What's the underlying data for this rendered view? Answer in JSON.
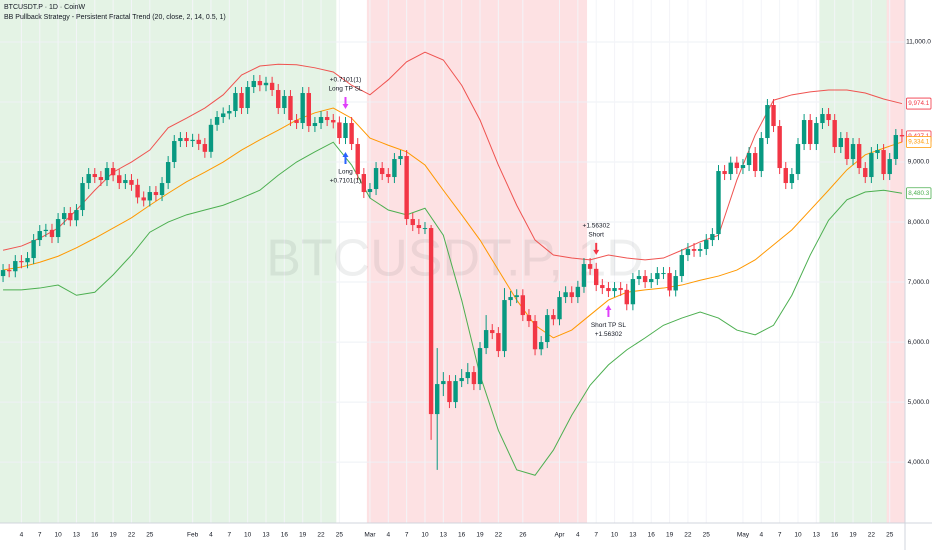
{
  "chart_data": {
    "type": "candlestick",
    "title": "BTCUSDT.P · 1D · CoinW",
    "subtitle": "BB Pullback Strategy - Persistent Fractal Trend (20, close, 2, 14, 0.5, 1)",
    "watermark": "BTCUSDT.P, 1D",
    "up_color": "#089981",
    "down_color": "#f23645",
    "grid": true,
    "x": [
      "Jan 1",
      "Jan 2",
      "Jan 3",
      "Jan 4",
      "Jan 5",
      "Jan 6",
      "Jan 7",
      "Jan 8",
      "Jan 9",
      "Jan 10",
      "Jan 11",
      "Jan 12",
      "Jan 13",
      "Jan 14",
      "Jan 15",
      "Jan 16",
      "Jan 17",
      "Jan 18",
      "Jan 19",
      "Jan 20",
      "Jan 21",
      "Jan 22",
      "Jan 23",
      "Jan 24",
      "Jan 25",
      "Jan 26",
      "Jan 27",
      "Jan 28",
      "Jan 29",
      "Jan 30",
      "Jan 31",
      "Feb 1",
      "Feb 2",
      "Feb 3",
      "Feb 4",
      "Feb 5",
      "Feb 6",
      "Feb 7",
      "Feb 8",
      "Feb 9",
      "Feb 10",
      "Feb 11",
      "Feb 12",
      "Feb 13",
      "Feb 14",
      "Feb 15",
      "Feb 16",
      "Feb 17",
      "Feb 18",
      "Feb 19",
      "Feb 20",
      "Feb 21",
      "Feb 22",
      "Feb 23",
      "Feb 24",
      "Feb 25",
      "Feb 26",
      "Feb 27",
      "Feb 28",
      "Feb 29",
      "Mar 1",
      "Mar 2",
      "Mar 3",
      "Mar 4",
      "Mar 5",
      "Mar 6",
      "Mar 7",
      "Mar 8",
      "Mar 9",
      "Mar 10",
      "Mar 11",
      "Mar 12",
      "Mar 13",
      "Mar 14",
      "Mar 15",
      "Mar 16",
      "Mar 17",
      "Mar 18",
      "Mar 19",
      "Mar 20",
      "Mar 21",
      "Mar 22",
      "Mar 23",
      "Mar 24",
      "Mar 25",
      "Mar 26",
      "Mar 27",
      "Mar 28",
      "Mar 29",
      "Mar 30",
      "Mar 31",
      "Apr 1",
      "Apr 2",
      "Apr 3",
      "Apr 4",
      "Apr 5",
      "Apr 6",
      "Apr 7",
      "Apr 8",
      "Apr 9",
      "Apr 10",
      "Apr 11",
      "Apr 12",
      "Apr 13",
      "Apr 14",
      "Apr 15",
      "Apr 16",
      "Apr 17",
      "Apr 18",
      "Apr 19",
      "Apr 20",
      "Apr 21",
      "Apr 22",
      "Apr 23",
      "Apr 24",
      "Apr 25",
      "Apr 26",
      "Apr 27",
      "Apr 28",
      "Apr 29",
      "Apr 30",
      "May 1",
      "May 2",
      "May 3",
      "May 4",
      "May 5",
      "May 6",
      "May 7",
      "May 8",
      "May 9",
      "May 10",
      "May 11",
      "May 12",
      "May 13",
      "May 14",
      "May 15",
      "May 16",
      "May 17",
      "May 18",
      "May 19",
      "May 20",
      "May 21",
      "May 22",
      "May 23",
      "May 24",
      "May 25",
      "May 26",
      "May 27"
    ],
    "open": [
      7100,
      7200,
      7180,
      7350,
      7330,
      7400,
      7700,
      7850,
      7870,
      7750,
      8050,
      8150,
      8030,
      8200,
      8650,
      8800,
      8750,
      8700,
      8900,
      8780,
      8650,
      8700,
      8620,
      8410,
      8360,
      8500,
      8450,
      8650,
      9000,
      9350,
      9400,
      9350,
      9370,
      9300,
      9170,
      9620,
      9750,
      9810,
      9850,
      10150,
      9900,
      10250,
      10350,
      10280,
      10320,
      10200,
      9900,
      10100,
      9700,
      9650,
      10150,
      9600,
      9650,
      9750,
      9700,
      9660,
      9400,
      9650,
      9300,
      8800,
      8500,
      8550,
      8900,
      8800,
      8750,
      9050,
      9100,
      8050,
      7950,
      7900,
      7900,
      4800,
      5300,
      5350,
      5000,
      5350,
      5400,
      5500,
      5300,
      5900,
      6200,
      6150,
      5850,
      6700,
      6750,
      6780,
      6450,
      6350,
      5880,
      6000,
      6450,
      6380,
      6750,
      6830,
      6750,
      6920,
      7300,
      7220,
      6950,
      6900,
      6850,
      6900,
      6870,
      6630,
      7050,
      7100,
      7000,
      7050,
      7150,
      7150,
      6860,
      7100,
      7450,
      7550,
      7520,
      7550,
      7700,
      7800,
      8850,
      8800,
      8990,
      8900,
      8950,
      9150,
      8850,
      9400,
      9950,
      9600,
      8900,
      8650,
      8800,
      9300,
      9700,
      9300,
      9650,
      9800,
      9700,
      9250,
      9400,
      9050,
      9300,
      8900,
      8750,
      9150,
      9200,
      8800,
      9050,
      9450
    ],
    "high": [
      7300,
      7300,
      7450,
      7450,
      7500,
      7800,
      7950,
      7970,
      7970,
      8150,
      8250,
      8250,
      8300,
      8750,
      8900,
      8900,
      8850,
      9000,
      9000,
      8880,
      8800,
      8800,
      8720,
      8510,
      8600,
      8600,
      8750,
      9100,
      9450,
      9500,
      9500,
      9470,
      9470,
      9400,
      9720,
      9850,
      9910,
      9950,
      10250,
      10250,
      10350,
      10450,
      10450,
      10420,
      10420,
      10300,
      10200,
      10200,
      9800,
      10250,
      10250,
      9750,
      9850,
      9850,
      9800,
      9760,
      9750,
      9750,
      9400,
      8900,
      8650,
      9000,
      9000,
      8900,
      9150,
      9200,
      9200,
      8150,
      8050,
      8000,
      7950,
      5900,
      5500,
      5450,
      5450,
      5550,
      5650,
      5600,
      6000,
      6450,
      6300,
      6250,
      6900,
      6850,
      6880,
      6880,
      6550,
      6450,
      6100,
      6550,
      6550,
      6850,
      6930,
      6930,
      7020,
      7400,
      7400,
      7320,
      7050,
      7000,
      7000,
      7000,
      6970,
      7150,
      7200,
      7200,
      7150,
      7250,
      7250,
      7250,
      7200,
      7550,
      7650,
      7650,
      7650,
      7800,
      7900,
      8950,
      8950,
      9090,
      9090,
      9050,
      9250,
      9250,
      9500,
      10050,
      10050,
      9700,
      9000,
      8900,
      9400,
      9800,
      9800,
      9750,
      9900,
      9900,
      9800,
      9500,
      9500,
      9400,
      9400,
      9000,
      9250,
      9300,
      9300,
      9150,
      9550,
      9550
    ],
    "low": [
      7000,
      7080,
      7080,
      7230,
      7230,
      7300,
      7600,
      7750,
      7650,
      7650,
      7950,
      7930,
      7930,
      8100,
      8550,
      8650,
      8600,
      8600,
      8680,
      8550,
      8550,
      8520,
      8310,
      8260,
      8260,
      8350,
      8350,
      8550,
      8900,
      9250,
      9250,
      9250,
      9200,
      9070,
      9070,
      9520,
      9650,
      9710,
      9750,
      9800,
      9800,
      10150,
      10180,
      10180,
      10100,
      9800,
      9800,
      9600,
      9550,
      9550,
      9500,
      9500,
      9550,
      9600,
      9560,
      9300,
      9300,
      9200,
      8700,
      8400,
      8400,
      8450,
      8700,
      8650,
      8650,
      8950,
      7950,
      7850,
      7800,
      7800,
      4370,
      3870,
      5100,
      4900,
      4900,
      5250,
      5300,
      5200,
      5200,
      5800,
      6050,
      5750,
      5750,
      6600,
      6650,
      6350,
      6250,
      5780,
      5780,
      5900,
      6280,
      6280,
      6650,
      6650,
      6650,
      6820,
      7120,
      6850,
      6800,
      6750,
      6750,
      6770,
      6530,
      6530,
      6950,
      6900,
      6900,
      6950,
      7050,
      6760,
      6760,
      7000,
      7350,
      7420,
      7420,
      7450,
      7600,
      7700,
      8700,
      8700,
      8800,
      8800,
      8850,
      8750,
      8750,
      9300,
      9500,
      8800,
      8550,
      8550,
      8700,
      9200,
      9200,
      9200,
      9550,
      9600,
      9150,
      9150,
      8950,
      8950,
      8800,
      8650,
      8650,
      9050,
      8700,
      8700,
      8950,
      9330
    ],
    "close": [
      7200,
      7180,
      7350,
      7330,
      7400,
      7700,
      7850,
      7870,
      7750,
      8050,
      8150,
      8030,
      8200,
      8650,
      8800,
      8750,
      8700,
      8900,
      8780,
      8650,
      8700,
      8620,
      8410,
      8360,
      8500,
      8450,
      8650,
      9000,
      9350,
      9400,
      9350,
      9370,
      9300,
      9170,
      9620,
      9750,
      9810,
      9850,
      10150,
      9900,
      10250,
      10350,
      10280,
      10320,
      10200,
      9900,
      10100,
      9700,
      9650,
      10150,
      9600,
      9650,
      9750,
      9700,
      9660,
      9400,
      9650,
      9300,
      8800,
      8500,
      8550,
      8900,
      8800,
      8750,
      9050,
      9100,
      8050,
      7950,
      7900,
      7900,
      4800,
      5300,
      5350,
      5000,
      5350,
      5400,
      5500,
      5300,
      5900,
      6200,
      6150,
      5850,
      6700,
      6750,
      6780,
      6450,
      6350,
      5880,
      6000,
      6450,
      6380,
      6750,
      6830,
      6750,
      6920,
      7300,
      7220,
      6950,
      6900,
      6850,
      6900,
      6870,
      6630,
      7050,
      7100,
      7000,
      7050,
      7150,
      7150,
      6860,
      7100,
      7450,
      7550,
      7520,
      7550,
      7700,
      7800,
      8850,
      8800,
      8990,
      8900,
      8950,
      9150,
      8850,
      9400,
      9950,
      9600,
      8900,
      8650,
      8800,
      9300,
      9700,
      9300,
      9650,
      9800,
      9700,
      9250,
      9400,
      9050,
      9300,
      8900,
      8750,
      9150,
      9200,
      8800,
      9050,
      9450,
      9427.1
    ],
    "overlays": {
      "x": [
        "Jan 1",
        "Jan 4",
        "Jan 7",
        "Jan 10",
        "Jan 13",
        "Jan 16",
        "Jan 19",
        "Jan 22",
        "Jan 25",
        "Jan 28",
        "Jan 31",
        "Feb 3",
        "Feb 6",
        "Feb 9",
        "Feb 12",
        "Feb 15",
        "Feb 18",
        "Feb 21",
        "Feb 24",
        "Feb 27",
        "Mar 1",
        "Mar 4",
        "Mar 7",
        "Mar 10",
        "Mar 13",
        "Mar 16",
        "Mar 19",
        "Mar 22",
        "Mar 25",
        "Mar 28",
        "Mar 31",
        "Apr 3",
        "Apr 6",
        "Apr 9",
        "Apr 12",
        "Apr 15",
        "Apr 18",
        "Apr 21",
        "Apr 24",
        "Apr 27",
        "Apr 30",
        "May 3",
        "May 6",
        "May 9",
        "May 12",
        "May 15",
        "May 18",
        "May 21",
        "May 24",
        "May 27"
      ],
      "series": [
        {
          "color": "#ef5350",
          "values": [
            7530,
            7600,
            7730,
            7900,
            8200,
            8530,
            8830,
            9000,
            9200,
            9570,
            9730,
            9900,
            10120,
            10450,
            10600,
            10630,
            10620,
            10570,
            10500,
            10280,
            10120,
            10370,
            10670,
            10830,
            10700,
            10280,
            9700,
            8950,
            8280,
            7700,
            7450,
            7400,
            7370,
            7450,
            7400,
            7370,
            7400,
            7530,
            7670,
            7780,
            8700,
            9450,
            10030,
            10120,
            10170,
            10200,
            10200,
            10150,
            10050,
            9974.1
          ]
        },
        {
          "color": "#ff9800",
          "values": [
            7200,
            7250,
            7330,
            7430,
            7570,
            7730,
            7900,
            8070,
            8280,
            8480,
            8670,
            8830,
            9000,
            9200,
            9370,
            9530,
            9700,
            9820,
            9900,
            9730,
            9400,
            9280,
            9170,
            8950,
            8530,
            8120,
            7700,
            7200,
            6700,
            6280,
            6070,
            6200,
            6450,
            6700,
            6830,
            6870,
            6900,
            6950,
            7030,
            7100,
            7200,
            7370,
            7620,
            7870,
            8200,
            8530,
            8870,
            9120,
            9230,
            9334.1
          ]
        },
        {
          "color": "#4caf50",
          "values": [
            6870,
            6870,
            6900,
            6950,
            6780,
            6830,
            7120,
            7450,
            7830,
            8000,
            8120,
            8200,
            8280,
            8400,
            8530,
            8780,
            9000,
            9170,
            9330,
            8950,
            8400,
            8200,
            8120,
            8230,
            7780,
            6700,
            5450,
            4530,
            3870,
            3780,
            4200,
            4780,
            5280,
            5620,
            5870,
            6070,
            6280,
            6400,
            6500,
            6400,
            6200,
            6120,
            6280,
            6780,
            7450,
            8030,
            8370,
            8500,
            8530,
            8480.3
          ]
        }
      ]
    },
    "zones": [
      {
        "from": "Jan 1",
        "to": "Feb 24",
        "color": "rgba(76,175,80,0.15)"
      },
      {
        "from": "Mar 1",
        "to": "Apr 5",
        "color": "rgba(242,54,69,0.15)"
      },
      {
        "from": "May 14",
        "to": "May 24",
        "color": "rgba(76,175,80,0.15)"
      },
      {
        "from": "May 25",
        "to": "May 27",
        "color": "rgba(242,54,69,0.15)"
      }
    ],
    "signals": [
      {
        "date": "Feb 26",
        "place": "above",
        "color": "#e040fb",
        "lines": [
          "+0.7101(1)",
          "Long TP SL"
        ]
      },
      {
        "date": "Feb 26",
        "place": "below",
        "color": "#2962ff",
        "lines": [
          "Long",
          "+0.7101(1)"
        ]
      },
      {
        "date": "Apr 7",
        "place": "above",
        "color": "#f23645",
        "lines": [
          "+1.56302",
          "Short"
        ]
      },
      {
        "date": "Apr 9",
        "place": "below",
        "color": "#e040fb",
        "lines": [
          "Short TP SL",
          "+1.56302"
        ]
      }
    ],
    "ylim": [
      2985,
      11700
    ],
    "yticks": [
      {
        "value": 4000,
        "label": "4,000.0"
      },
      {
        "value": 5000,
        "label": "5,000.0"
      },
      {
        "value": 6000,
        "label": "6,000.0"
      },
      {
        "value": 7000,
        "label": "7,000.0"
      },
      {
        "value": 8000,
        "label": "8,000.0"
      },
      {
        "value": 9000,
        "label": "9,000.0"
      },
      {
        "value": 10000,
        "label": "10,000.0"
      },
      {
        "value": 11000,
        "label": "11,000.0"
      }
    ],
    "xticks": [
      {
        "value": "Jan 4",
        "label": "4"
      },
      {
        "value": "Jan 7",
        "label": "7"
      },
      {
        "value": "Jan 10",
        "label": "10"
      },
      {
        "value": "Jan 13",
        "label": "13"
      },
      {
        "value": "Jan 16",
        "label": "16"
      },
      {
        "value": "Jan 19",
        "label": "19"
      },
      {
        "value": "Jan 22",
        "label": "22"
      },
      {
        "value": "Jan 25",
        "label": "25"
      },
      {
        "value": "Feb 1",
        "label": "Feb"
      },
      {
        "value": "Feb 4",
        "label": "4"
      },
      {
        "value": "Feb 7",
        "label": "7"
      },
      {
        "value": "Feb 10",
        "label": "10"
      },
      {
        "value": "Feb 13",
        "label": "13"
      },
      {
        "value": "Feb 16",
        "label": "16"
      },
      {
        "value": "Feb 19",
        "label": "19"
      },
      {
        "value": "Feb 22",
        "label": "22"
      },
      {
        "value": "Feb 25",
        "label": "25"
      },
      {
        "value": "Mar 1",
        "label": "Mar"
      },
      {
        "value": "Mar 4",
        "label": "4"
      },
      {
        "value": "Mar 7",
        "label": "7"
      },
      {
        "value": "Mar 10",
        "label": "10"
      },
      {
        "value": "Mar 13",
        "label": "13"
      },
      {
        "value": "Mar 16",
        "label": "16"
      },
      {
        "value": "Mar 19",
        "label": "19"
      },
      {
        "value": "Mar 22",
        "label": "22"
      },
      {
        "value": "Mar 26",
        "label": "26"
      },
      {
        "value": "Apr 1",
        "label": "Apr"
      },
      {
        "value": "Apr 4",
        "label": "4"
      },
      {
        "value": "Apr 7",
        "label": "7"
      },
      {
        "value": "Apr 10",
        "label": "10"
      },
      {
        "value": "Apr 13",
        "label": "13"
      },
      {
        "value": "Apr 16",
        "label": "16"
      },
      {
        "value": "Apr 19",
        "label": "19"
      },
      {
        "value": "Apr 22",
        "label": "22"
      },
      {
        "value": "Apr 25",
        "label": "25"
      },
      {
        "value": "May 1",
        "label": "May"
      },
      {
        "value": "May 4",
        "label": "4"
      },
      {
        "value": "May 7",
        "label": "7"
      },
      {
        "value": "May 10",
        "label": "10"
      },
      {
        "value": "May 13",
        "label": "13"
      },
      {
        "value": "May 16",
        "label": "16"
      },
      {
        "value": "May 19",
        "label": "19"
      },
      {
        "value": "May 22",
        "label": "22"
      },
      {
        "value": "May 25",
        "label": "25"
      }
    ],
    "price_labels": [
      {
        "value": 9974.1,
        "label": "9,974.1",
        "color": "#f23645"
      },
      {
        "value": 9427.1,
        "label": "9,427.1",
        "color": "#f23645"
      },
      {
        "value": 9334.1,
        "label": "9,334.1",
        "color": "#ff9800"
      },
      {
        "value": 8480.3,
        "label": "8,480.3",
        "color": "#4caf50"
      }
    ]
  }
}
